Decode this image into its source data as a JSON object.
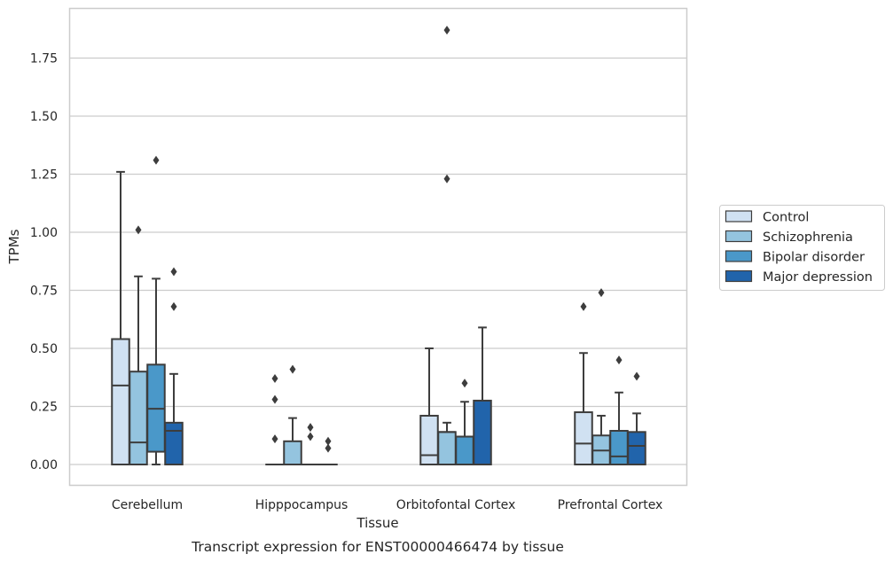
{
  "chart_data": {
    "type": "box",
    "xlabel": "Tissue",
    "ylabel": "TPMs",
    "caption": "Transcript expression for ENST00000466474 by tissue",
    "ylim": [
      -0.09,
      1.97
    ],
    "yticks": [
      "0.00",
      "0.25",
      "0.50",
      "0.75",
      "1.00",
      "1.25",
      "1.50",
      "1.75"
    ],
    "grid": true,
    "legend_position": "right",
    "categories": [
      "Cerebellum",
      "Hipppocampus",
      "Orbitofontal Cortex",
      "Prefrontal Cortex"
    ],
    "series": [
      {
        "name": "Control",
        "color": "#d0e1f2",
        "boxes": [
          {
            "whislo": 0.0,
            "q1": 0.0,
            "med": 0.34,
            "q3": 0.54,
            "whishi": 1.26,
            "fliers": []
          },
          {
            "whislo": 0.0,
            "q1": 0.0,
            "med": 0.0,
            "q3": 0.0,
            "whishi": 0.0,
            "fliers": [
              0.11,
              0.28,
              0.37
            ]
          },
          {
            "whislo": 0.0,
            "q1": 0.0,
            "med": 0.04,
            "q3": 0.21,
            "whishi": 0.5,
            "fliers": []
          },
          {
            "whislo": 0.0,
            "q1": 0.0,
            "med": 0.09,
            "q3": 0.225,
            "whishi": 0.48,
            "fliers": [
              0.68
            ]
          }
        ]
      },
      {
        "name": "Schizophrenia",
        "color": "#94c4df",
        "boxes": [
          {
            "whislo": 0.0,
            "q1": 0.0,
            "med": 0.095,
            "q3": 0.4,
            "whishi": 0.81,
            "fliers": [
              1.01
            ]
          },
          {
            "whislo": 0.0,
            "q1": 0.0,
            "med": 0.0,
            "q3": 0.1,
            "whishi": 0.2,
            "fliers": [
              0.41
            ]
          },
          {
            "whislo": 0.0,
            "q1": 0.0,
            "med": 0.14,
            "q3": 0.14,
            "whishi": 0.18,
            "fliers": [
              1.23,
              1.87
            ]
          },
          {
            "whislo": 0.0,
            "q1": 0.0,
            "med": 0.06,
            "q3": 0.125,
            "whishi": 0.21,
            "fliers": [
              0.74
            ]
          }
        ]
      },
      {
        "name": "Bipolar disorder",
        "color": "#4a98c9",
        "boxes": [
          {
            "whislo": 0.0,
            "q1": 0.055,
            "med": 0.24,
            "q3": 0.43,
            "whishi": 0.8,
            "fliers": [
              1.31
            ]
          },
          {
            "whislo": 0.0,
            "q1": 0.0,
            "med": 0.0,
            "q3": 0.0,
            "whishi": 0.0,
            "fliers": [
              0.12,
              0.16
            ]
          },
          {
            "whislo": 0.0,
            "q1": 0.0,
            "med": 0.12,
            "q3": 0.12,
            "whishi": 0.27,
            "fliers": [
              0.35
            ]
          },
          {
            "whislo": 0.0,
            "q1": 0.0,
            "med": 0.035,
            "q3": 0.145,
            "whishi": 0.31,
            "fliers": [
              0.45
            ]
          }
        ]
      },
      {
        "name": "Major depression",
        "color": "#2164ab",
        "boxes": [
          {
            "whislo": 0.0,
            "q1": 0.0,
            "med": 0.145,
            "q3": 0.18,
            "whishi": 0.39,
            "fliers": [
              0.68,
              0.83
            ]
          },
          {
            "whislo": 0.0,
            "q1": 0.0,
            "med": 0.0,
            "q3": 0.0,
            "whishi": 0.0,
            "fliers": [
              0.07,
              0.1
            ]
          },
          {
            "whislo": 0.0,
            "q1": 0.0,
            "med": 0.275,
            "q3": 0.275,
            "whishi": 0.59,
            "fliers": []
          },
          {
            "whislo": 0.0,
            "q1": 0.0,
            "med": 0.08,
            "q3": 0.14,
            "whishi": 0.22,
            "fliers": [
              0.38
            ]
          }
        ]
      }
    ]
  }
}
